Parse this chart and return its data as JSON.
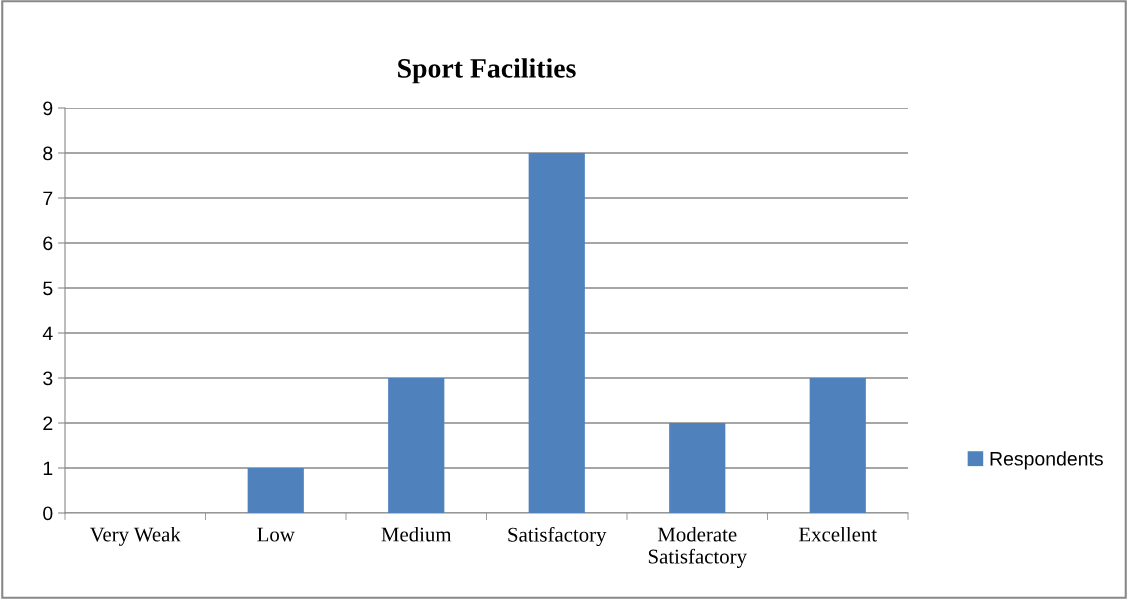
{
  "chart_data": {
    "type": "bar",
    "title": "Sport Facilities",
    "categories": [
      "Very Weak",
      "Low",
      "Medium",
      "Satisfactory",
      "Moderate Satisfactory",
      "Excellent"
    ],
    "series": [
      {
        "name": "Respondents",
        "color": "#4f81bd",
        "values": [
          0,
          1,
          3,
          8,
          2,
          3
        ]
      }
    ],
    "ylim": [
      0,
      9
    ],
    "yticks": [
      0,
      1,
      2,
      3,
      4,
      5,
      6,
      7,
      8,
      9
    ],
    "grid": "y",
    "legend": "right"
  }
}
